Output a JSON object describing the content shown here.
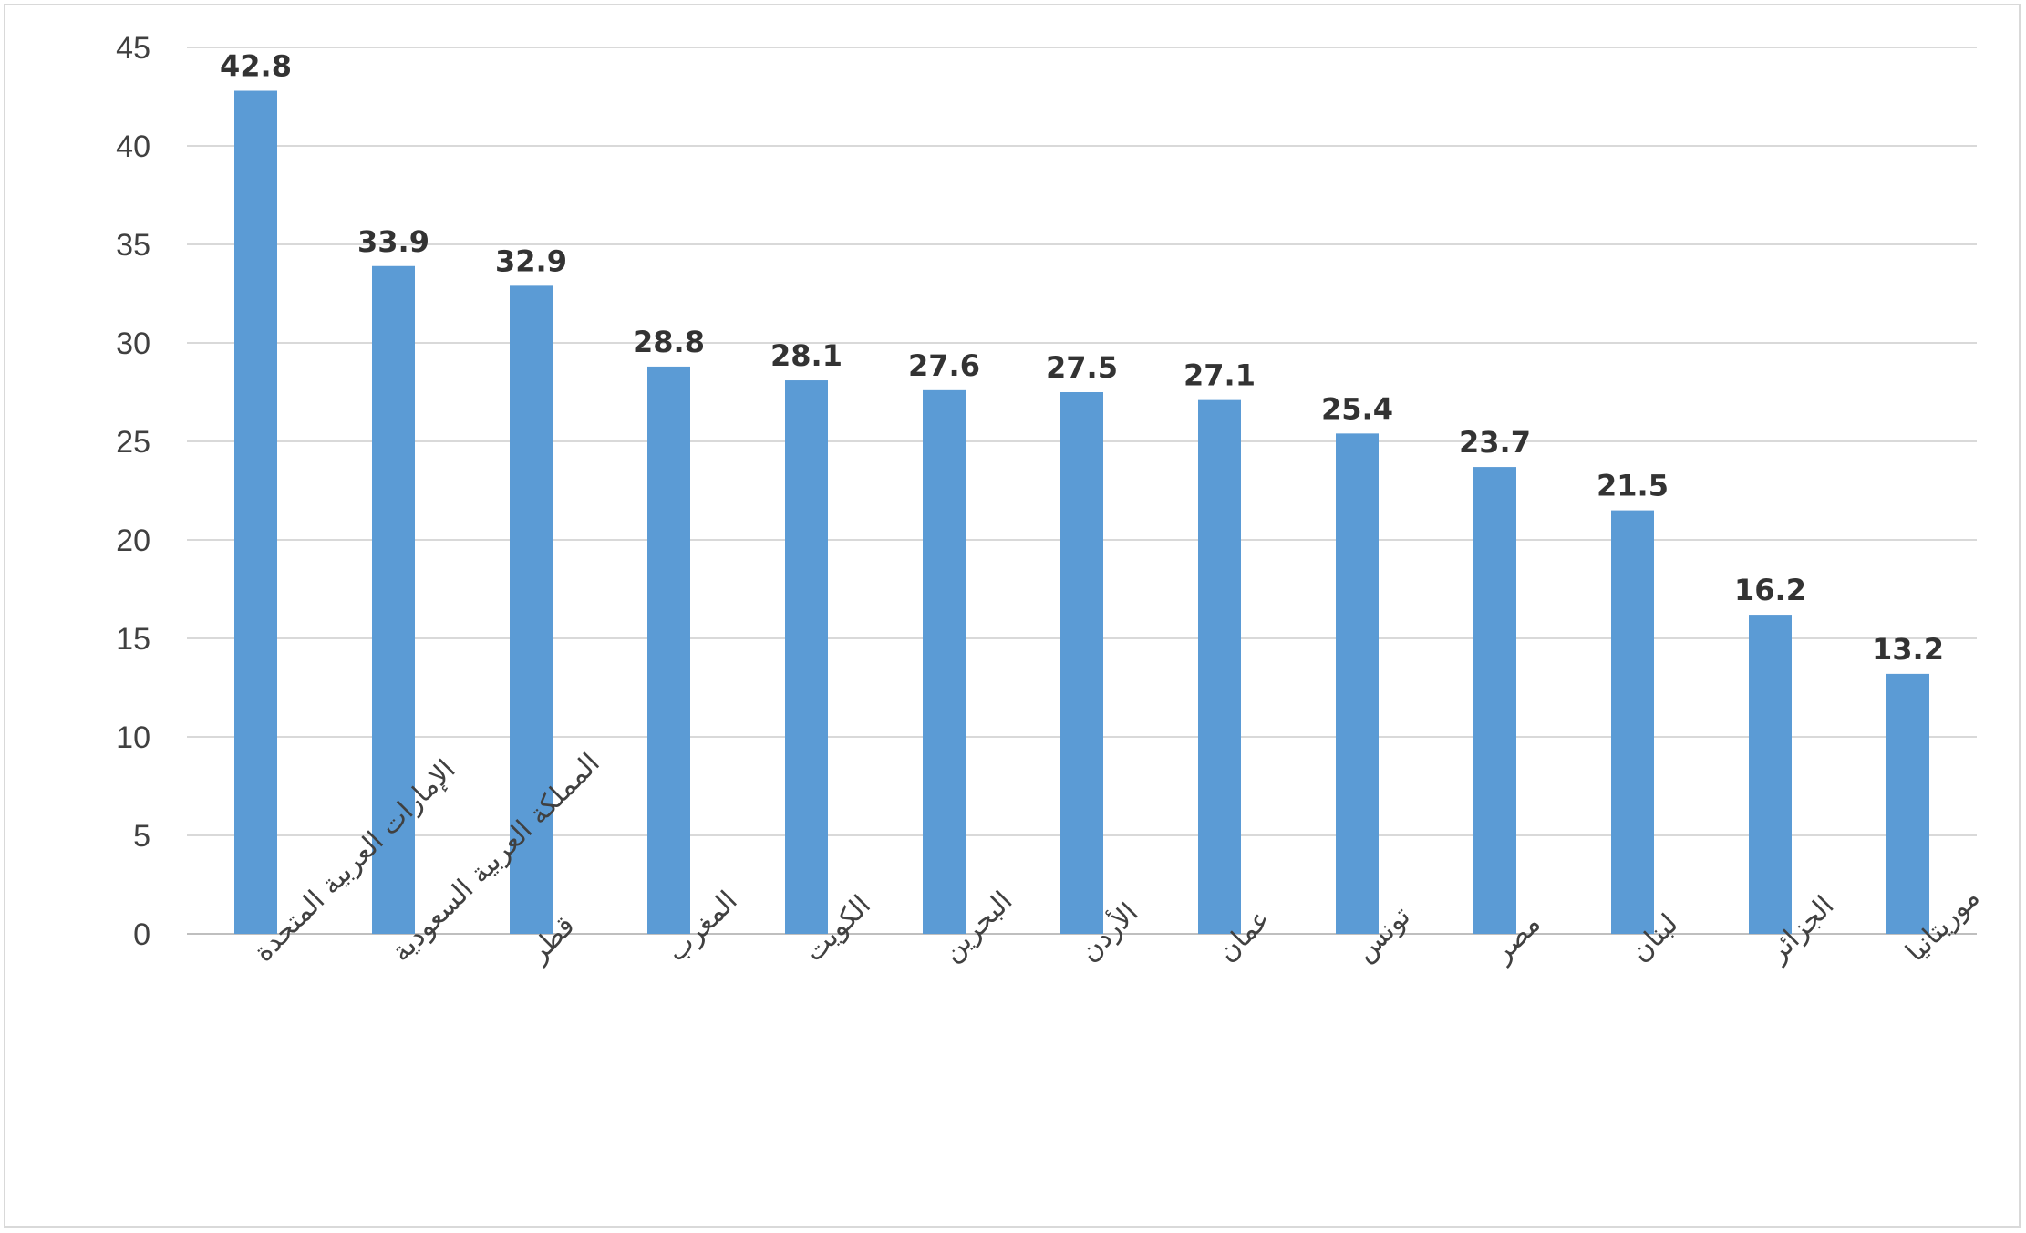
{
  "chart_data": {
    "type": "bar",
    "title": "",
    "xlabel": "",
    "ylabel": "",
    "categories": [
      "الإمارات العربية المتحدة",
      "المملكة العربية السعودية",
      "قطر",
      "المغرب",
      "الكويت",
      "البحرين",
      "الأردن",
      "عمان",
      "تونس",
      "مصر",
      "لبنان",
      "الجزائر",
      "موريتانيا"
    ],
    "values": [
      42.8,
      33.9,
      32.9,
      28.8,
      28.1,
      27.6,
      27.5,
      27.1,
      25.4,
      23.7,
      21.5,
      16.2,
      13.2
    ],
    "data_labels": [
      "42.8",
      "33.9",
      "32.9",
      "28.8",
      "28.1",
      "27.6",
      "27.5",
      "27.1",
      "25.4",
      "23.7",
      "21.5",
      "16.2",
      "13.2"
    ],
    "ylim": [
      0,
      45
    ],
    "yticks": [
      "0",
      "5",
      "10",
      "15",
      "20",
      "25",
      "30",
      "35",
      "40",
      "45"
    ],
    "grid": true,
    "legend": "none",
    "bar_color": "#5b9bd5"
  }
}
